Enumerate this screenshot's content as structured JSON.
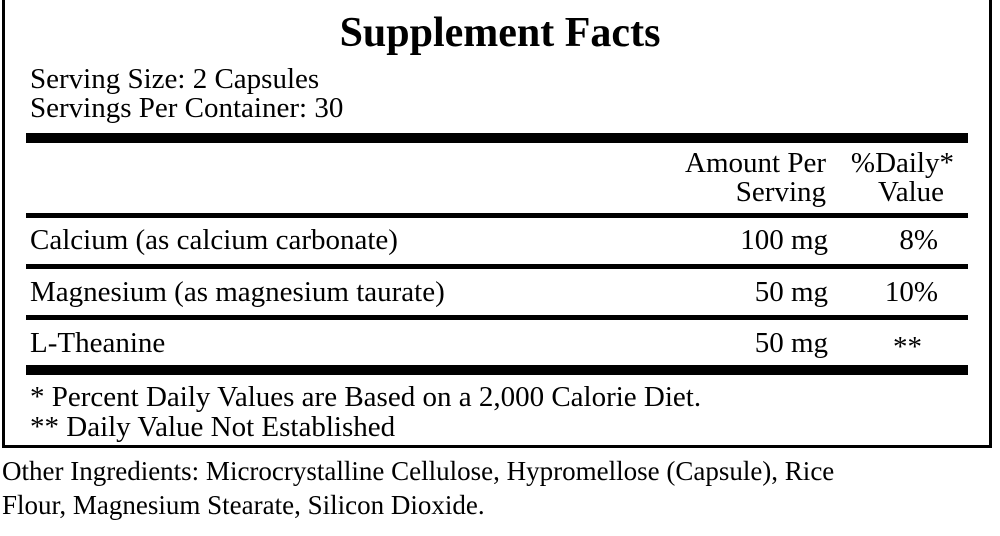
{
  "title": "Supplement Facts",
  "serving_size": "Serving Size: 2 Capsules",
  "servings_per_container": "Servings Per Container: 30",
  "header": {
    "amount_line1": "Amount Per",
    "amount_line2": "Serving",
    "dv_line1": "%Daily*",
    "dv_line2": "Value"
  },
  "rows": [
    {
      "name": "Calcium (as calcium carbonate)",
      "amount": "100 mg",
      "dv": "8%"
    },
    {
      "name": "Magnesium (as magnesium taurate)",
      "amount": "50 mg",
      "dv": "10%"
    },
    {
      "name": "L-Theanine",
      "amount": "50 mg",
      "dv": "**"
    }
  ],
  "footnotes": [
    "* Percent Daily Values are Based on a 2,000 Calorie Diet.",
    "** Daily Value Not Established"
  ],
  "other_ingredients": [
    "Other Ingredients: Microcrystalline Cellulose, Hypromellose (Capsule), Rice",
    "Flour, Magnesium Stearate, Silicon Dioxide."
  ]
}
